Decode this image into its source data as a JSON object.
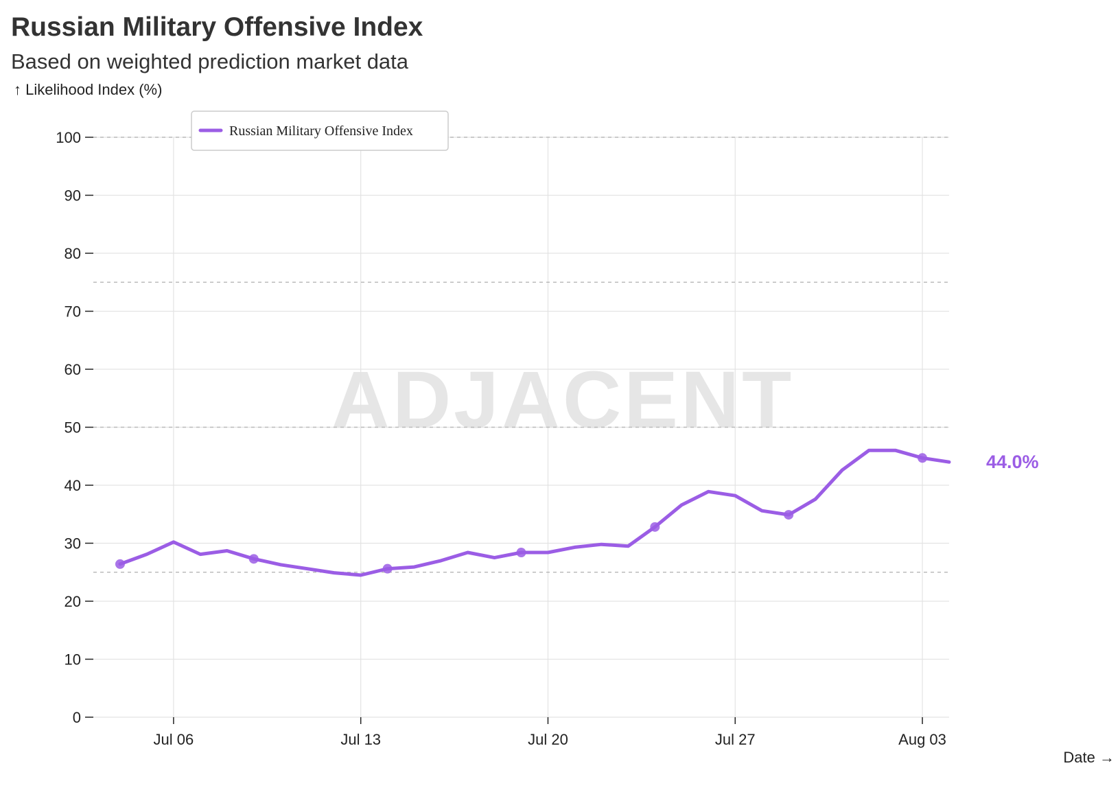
{
  "header": {
    "title": "Russian Military Offensive Index",
    "subtitle": "Based on weighted prediction market data"
  },
  "watermark": "ADJACENT",
  "chart_data": {
    "type": "line",
    "ylabel": "↑ Likelihood Index (%)",
    "xlabel": "Date →",
    "ylim": [
      0,
      100
    ],
    "yticks": [
      0,
      10,
      20,
      30,
      40,
      50,
      60,
      70,
      80,
      90,
      100
    ],
    "xlim": [
      "2025-07-03",
      "2025-08-04"
    ],
    "xticks": [
      {
        "date": "2025-07-06",
        "label": "Jul 06"
      },
      {
        "date": "2025-07-13",
        "label": "Jul 13"
      },
      {
        "date": "2025-07-20",
        "label": "Jul 20"
      },
      {
        "date": "2025-07-27",
        "label": "Jul 27"
      },
      {
        "date": "2025-08-03",
        "label": "Aug 03"
      }
    ],
    "reference_lines": [
      25,
      50,
      75,
      100
    ],
    "grid": true,
    "legend_position": "top-left",
    "series": [
      {
        "name": "Russian Military Offensive Index",
        "color": "#9b5de5",
        "end_label": "44.0%",
        "x": [
          "2025-07-04",
          "2025-07-05",
          "2025-07-06",
          "2025-07-07",
          "2025-07-08",
          "2025-07-09",
          "2025-07-10",
          "2025-07-11",
          "2025-07-12",
          "2025-07-13",
          "2025-07-14",
          "2025-07-15",
          "2025-07-16",
          "2025-07-17",
          "2025-07-18",
          "2025-07-19",
          "2025-07-20",
          "2025-07-21",
          "2025-07-22",
          "2025-07-23",
          "2025-07-24",
          "2025-07-25",
          "2025-07-26",
          "2025-07-27",
          "2025-07-28",
          "2025-07-29",
          "2025-07-30",
          "2025-07-31",
          "2025-08-01",
          "2025-08-02",
          "2025-08-03",
          "2025-08-04"
        ],
        "values": [
          26.4,
          28.1,
          30.2,
          28.1,
          28.7,
          27.3,
          26.3,
          25.6,
          24.9,
          24.5,
          25.6,
          25.9,
          27.0,
          28.4,
          27.5,
          28.4,
          28.4,
          29.3,
          29.8,
          29.5,
          32.8,
          36.6,
          38.9,
          38.2,
          35.6,
          34.9,
          37.6,
          42.6,
          46.0,
          46.0,
          44.7,
          44.0
        ],
        "markers": [
          "2025-07-04",
          "2025-07-09",
          "2025-07-14",
          "2025-07-19",
          "2025-07-24",
          "2025-07-29",
          "2025-08-03"
        ]
      }
    ]
  }
}
